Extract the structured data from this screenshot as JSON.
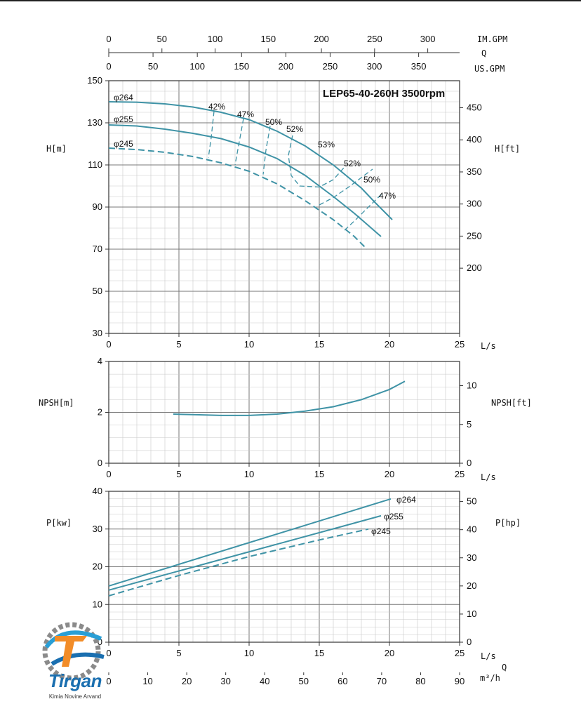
{
  "chart_data": [
    {
      "type": "line",
      "title": "LEP65-40-260H 3500rpm",
      "xlabel": "L/s",
      "ylabel": "H[m]",
      "ylabel_right": "H[ft]",
      "xlim": [
        0,
        25
      ],
      "ylim": [
        30,
        150
      ],
      "x_ticks": [
        "0",
        "5",
        "10",
        "15",
        "20",
        "25"
      ],
      "y_ticks": [
        "30",
        "50",
        "70",
        "90",
        "110",
        "130",
        "150"
      ],
      "y_right_ticks": [
        "200",
        "250",
        "300",
        "350",
        "400",
        "450"
      ],
      "grid": true,
      "top_axes": {
        "im_gpm_label": "IM.GPM",
        "im_gpm_ticks": [
          "0",
          "50",
          "100",
          "150",
          "200",
          "250",
          "300"
        ],
        "q_label": "Q",
        "us_gpm_label": "US.GPM",
        "us_gpm_ticks": [
          "0",
          "50",
          "100",
          "150",
          "200",
          "250",
          "300",
          "350"
        ]
      },
      "series": [
        {
          "name": "φ264",
          "style": "solid",
          "x": [
            0,
            2,
            4,
            6,
            8,
            10,
            12,
            14,
            16,
            18,
            19,
            20.2
          ],
          "y": [
            140,
            139.8,
            139,
            137.5,
            135,
            131.5,
            126,
            119,
            110,
            99,
            92,
            84
          ]
        },
        {
          "name": "φ255",
          "style": "solid",
          "x": [
            0,
            2,
            4,
            6,
            8,
            10,
            12,
            14,
            16,
            17.5,
            19.4
          ],
          "y": [
            129,
            128.5,
            127,
            125,
            122.5,
            118.5,
            113,
            105,
            95,
            87,
            76
          ]
        },
        {
          "name": "φ245",
          "style": "dashed",
          "x": [
            0,
            2,
            4,
            6,
            8,
            10,
            12,
            14,
            16,
            17.5,
            18.4
          ],
          "y": [
            118,
            117.3,
            116,
            114,
            111,
            107,
            101,
            93,
            84,
            76,
            70
          ]
        }
      ],
      "efficiency_curves": [
        {
          "label": "42%",
          "x": [
            7.5,
            7.3,
            7.1
          ],
          "y": [
            135.5,
            123,
            113.5
          ]
        },
        {
          "label": "47%",
          "x": [
            9.6,
            9.3,
            9.0
          ],
          "y": [
            132,
            121,
            110
          ]
        },
        {
          "label": "50%",
          "x": [
            11.5,
            11.2,
            11.0
          ],
          "y": [
            128.5,
            117,
            105.5
          ]
        },
        {
          "label": "52%",
          "x": [
            13.1,
            12.8,
            13.0,
            13.6,
            15.0,
            16.0,
            16.8
          ],
          "y": [
            124,
            114.5,
            105,
            100,
            99.5,
            103,
            109
          ]
        },
        {
          "label": "52%",
          "x": [
            15.0,
            16.0,
            17.2,
            18.0,
            18.8
          ],
          "y": [
            91,
            94.5,
            100,
            104,
            108
          ]
        },
        {
          "label": "50%",
          "x": [
            16.8,
            17.6,
            18.5,
            19.5
          ],
          "y": [
            79,
            84,
            90,
            96.5
          ]
        }
      ],
      "labels": [
        "φ264",
        "φ255",
        "φ245",
        "42%",
        "47%",
        "50%",
        "52%",
        "53%",
        "52%",
        "50%",
        "47%"
      ]
    },
    {
      "type": "line",
      "xlabel": "L/s",
      "ylabel": "NPSH[m]",
      "ylabel_right": "NPSH[ft]",
      "xlim": [
        0,
        25
      ],
      "ylim": [
        0,
        4
      ],
      "x_ticks": [
        "0",
        "5",
        "10",
        "15",
        "20",
        "25"
      ],
      "y_ticks": [
        "0",
        "2",
        "4"
      ],
      "y_right_ticks": [
        "0",
        "5",
        "10"
      ],
      "grid": true,
      "series": [
        {
          "x": [
            4.6,
            6,
            8,
            10,
            12,
            14,
            16,
            18,
            20,
            21.1
          ],
          "y": [
            1.93,
            1.91,
            1.88,
            1.88,
            1.93,
            2.05,
            2.22,
            2.5,
            2.9,
            3.22
          ]
        }
      ]
    },
    {
      "type": "line",
      "xlabel": "L/s",
      "ylabel": "P[kw]",
      "ylabel_right": "P[hp]",
      "xlim": [
        0,
        25
      ],
      "ylim": [
        0,
        40
      ],
      "x_ticks": [
        "0",
        "5",
        "10",
        "15",
        "20",
        "25"
      ],
      "y_ticks": [
        "0",
        "10",
        "20",
        "30",
        "40"
      ],
      "y_right_ticks": [
        "0",
        "10",
        "20",
        "30",
        "40",
        "50"
      ],
      "grid": true,
      "bottom_axis": {
        "label": "Q",
        "unit": "m³/h",
        "ticks": [
          "0",
          "10",
          "20",
          "30",
          "40",
          "50",
          "60",
          "70",
          "80",
          "90"
        ]
      },
      "series": [
        {
          "name": "φ264",
          "style": "solid",
          "x": [
            0,
            20.1
          ],
          "y": [
            14.9,
            38.0
          ]
        },
        {
          "name": "φ255",
          "style": "solid",
          "x": [
            0,
            19.4
          ],
          "y": [
            13.8,
            33.5
          ]
        },
        {
          "name": "φ245",
          "style": "dashed",
          "x": [
            0,
            5,
            10,
            15,
            18.5
          ],
          "y": [
            12.3,
            17.7,
            22.7,
            27.1,
            30.0
          ]
        }
      ]
    }
  ],
  "logo": {
    "word": "Tirgan",
    "subtitle": "Kimia Novine Arvand"
  }
}
